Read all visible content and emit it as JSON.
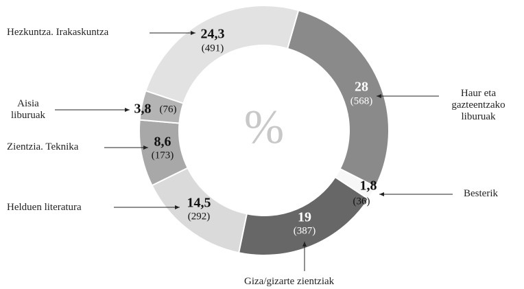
{
  "chart_data": {
    "type": "donut",
    "center_label": "%",
    "categories": [
      "Haur eta gazteentzako liburuak",
      "Besterik",
      "Giza/gizarte zientziak",
      "Helduen literatura",
      "Zientzia. Teknika",
      "Aisia liburuak",
      "Hezkuntza. Irakaskuntza"
    ],
    "values": [
      28,
      1.8,
      19,
      14.5,
      8.6,
      3.8,
      24.3
    ],
    "value_labels": [
      "28",
      "1,8",
      "19",
      "14,5",
      "8,6",
      "3,8",
      "24,3"
    ],
    "count_labels": [
      "(568)",
      "(36)",
      "(387)",
      "(292)",
      "(173)",
      "(76)",
      "(491)"
    ],
    "colors": [
      "#8a8a8a",
      "#f7f7f7",
      "#676767",
      "#dadada",
      "#a8a8a8",
      "#b4b4b4",
      "#e2e2e2"
    ]
  }
}
